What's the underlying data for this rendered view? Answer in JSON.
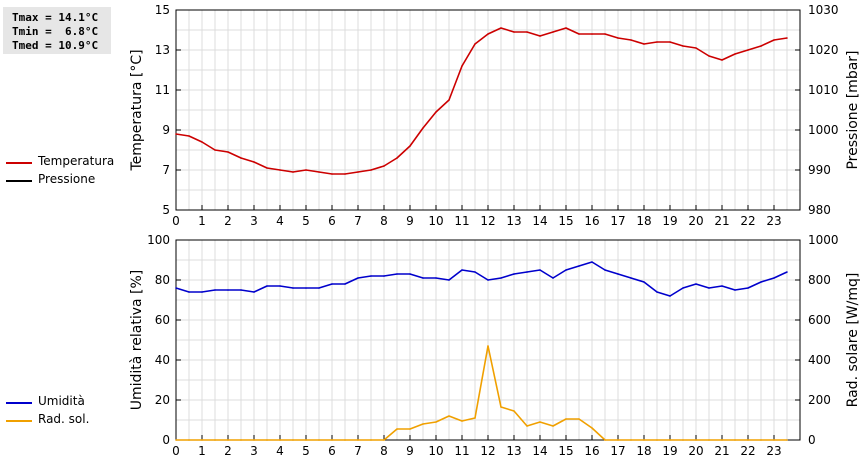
{
  "stats": {
    "tmax": "Tmax = 14.1°C",
    "tmin": "Tmin =  6.8°C",
    "tmed": "Tmed = 10.9°C"
  },
  "legend_top": [
    {
      "label": "Temperatura",
      "color": "#cc0000"
    },
    {
      "label": "Pressione",
      "color": "#000000"
    }
  ],
  "legend_bottom": [
    {
      "label": "Umidità",
      "color": "#0000cc"
    },
    {
      "label": "Rad. sol.",
      "color": "#f0a000"
    }
  ],
  "chart_data": [
    {
      "type": "line",
      "xlabel": "",
      "ylabel": "Temperatura [°C]",
      "y2label": "Pressione [mbar]",
      "xlim": [
        0,
        24
      ],
      "xticks": [
        "0",
        "1",
        "2",
        "3",
        "4",
        "5",
        "6",
        "7",
        "8",
        "9",
        "10",
        "11",
        "12",
        "13",
        "14",
        "15",
        "16",
        "17",
        "18",
        "19",
        "20",
        "21",
        "22",
        "23"
      ],
      "ylim": [
        5,
        15
      ],
      "yticks": [
        "5",
        "7",
        "9",
        "11",
        "13",
        "15"
      ],
      "y2lim": [
        980,
        1030
      ],
      "y2ticks": [
        "980",
        "990",
        "1000",
        "1010",
        "1020",
        "1030"
      ],
      "grid": true,
      "series": [
        {
          "name": "Temperatura",
          "color": "#cc0000",
          "axis": "left",
          "x": [
            0,
            0.5,
            1,
            1.5,
            2,
            2.5,
            3,
            3.5,
            4,
            4.5,
            5,
            5.5,
            6,
            6.5,
            7,
            7.5,
            8,
            8.5,
            9,
            9.5,
            10,
            10.5,
            11,
            11.5,
            12,
            12.5,
            13,
            13.5,
            14,
            14.5,
            15,
            15.5,
            16,
            16.5,
            17,
            17.5,
            18,
            18.5,
            19,
            19.5,
            20,
            20.5,
            21,
            21.5,
            22,
            22.5,
            23,
            23.5
          ],
          "values": [
            8.8,
            8.7,
            8.4,
            8.0,
            7.9,
            7.6,
            7.4,
            7.1,
            7.0,
            6.9,
            7.0,
            6.9,
            6.8,
            6.8,
            6.9,
            7.0,
            7.2,
            7.6,
            8.2,
            9.1,
            9.9,
            10.5,
            12.2,
            13.3,
            13.8,
            14.1,
            13.9,
            13.9,
            13.7,
            13.9,
            14.1,
            13.8,
            13.8,
            13.8,
            13.6,
            13.5,
            13.3,
            13.4,
            13.4,
            13.2,
            13.1,
            12.7,
            12.5,
            12.8,
            13.0,
            13.2,
            13.5,
            13.6
          ]
        },
        {
          "name": "Pressione",
          "color": "#000000",
          "axis": "right",
          "x": [],
          "values": []
        }
      ]
    },
    {
      "type": "line",
      "xlabel": "",
      "ylabel": "Umidità relativa [%]",
      "y2label": "Rad. solare [W/mq]",
      "xlim": [
        0,
        24
      ],
      "xticks": [
        "0",
        "1",
        "2",
        "3",
        "4",
        "5",
        "6",
        "7",
        "8",
        "9",
        "10",
        "11",
        "12",
        "13",
        "14",
        "15",
        "16",
        "17",
        "18",
        "19",
        "20",
        "21",
        "22",
        "23"
      ],
      "ylim": [
        0,
        100
      ],
      "yticks": [
        "0",
        "20",
        "40",
        "60",
        "80",
        "100"
      ],
      "y2lim": [
        0,
        1000
      ],
      "y2ticks": [
        "0",
        "200",
        "400",
        "600",
        "800",
        "1000"
      ],
      "grid": true,
      "series": [
        {
          "name": "Umidità",
          "color": "#0000cc",
          "axis": "left",
          "x": [
            0,
            0.5,
            1,
            1.5,
            2,
            2.5,
            3,
            3.5,
            4,
            4.5,
            5,
            5.5,
            6,
            6.5,
            7,
            7.5,
            8,
            8.5,
            9,
            9.5,
            10,
            10.5,
            11,
            11.5,
            12,
            12.5,
            13,
            13.5,
            14,
            14.5,
            15,
            15.5,
            16,
            16.5,
            17,
            17.5,
            18,
            18.5,
            19,
            19.5,
            20,
            20.5,
            21,
            21.5,
            22,
            22.5,
            23,
            23.5
          ],
          "values": [
            76,
            74,
            74,
            75,
            75,
            75,
            74,
            77,
            77,
            76,
            76,
            76,
            78,
            78,
            81,
            82,
            82,
            83,
            83,
            81,
            81,
            80,
            85,
            84,
            80,
            81,
            83,
            84,
            85,
            81,
            85,
            87,
            89,
            85,
            83,
            81,
            79,
            74,
            72,
            76,
            78,
            76,
            77,
            75,
            76,
            79,
            81,
            84
          ]
        },
        {
          "name": "Rad. sol.",
          "color": "#f0a000",
          "axis": "right",
          "x": [
            0,
            0.5,
            1,
            1.5,
            2,
            2.5,
            3,
            3.5,
            4,
            4.5,
            5,
            5.5,
            6,
            6.5,
            7,
            7.5,
            8,
            8.5,
            9,
            9.5,
            10,
            10.5,
            11,
            11.5,
            12,
            12.5,
            13,
            13.5,
            14,
            14.5,
            15,
            15.5,
            16,
            16.5,
            17,
            17.5,
            18,
            18.5,
            19,
            19.5,
            20,
            20.5,
            21,
            21.5,
            22,
            22.5,
            23,
            23.5
          ],
          "values": [
            0,
            0,
            0,
            0,
            0,
            0,
            0,
            0,
            0,
            0,
            0,
            0,
            0,
            0,
            0,
            0,
            0,
            55,
            55,
            80,
            90,
            120,
            95,
            110,
            470,
            165,
            145,
            70,
            90,
            70,
            105,
            105,
            60,
            0,
            0,
            0,
            0,
            0,
            0,
            0,
            0,
            0,
            0,
            0,
            0,
            0,
            0,
            0
          ]
        }
      ]
    }
  ]
}
